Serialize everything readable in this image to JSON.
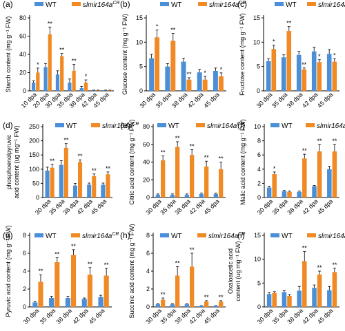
{
  "colors": {
    "wt": "#4a8fd8",
    "mutant": "#f08a24",
    "axis": "#000000"
  },
  "legend": {
    "wt_label": "WT",
    "mutant_label": "slmir164a",
    "mutant_sup": "CR"
  },
  "chart_data": [
    {
      "id": "a",
      "panel_label": "(a)",
      "type": "bar",
      "ylabel": "Starch content (mg g⁻¹ FW)",
      "categories": [
        "10 dpa",
        "20 dpa",
        "30 dpa",
        "35 dpa",
        "38 dpa",
        "42 dpa",
        "45 dpa"
      ],
      "ylim": [
        0,
        80
      ],
      "yticks": [
        0,
        20,
        40,
        60,
        80
      ],
      "series": [
        {
          "name": "WT",
          "values": [
            9,
            26,
            18,
            9,
            3,
            0.5,
            0.5
          ],
          "errors": [
            2,
            4,
            4,
            4,
            2,
            0.3,
            0.3
          ]
        },
        {
          "name": "slmir164aCR",
          "values": [
            20,
            62,
            38,
            22,
            9,
            0.5,
            0.5
          ],
          "errors": [
            5,
            8,
            3,
            7,
            3,
            0.3,
            0.3
          ]
        }
      ],
      "significance": [
        "*",
        "**",
        "**",
        "**",
        "*",
        "",
        ""
      ]
    },
    {
      "id": "b",
      "panel_label": "(b)",
      "type": "bar",
      "ylabel": "Glucose content (mg g⁻¹ FW)",
      "categories": [
        "30 dpa",
        "35 dpa",
        "38 dpa",
        "42 dpa",
        "45 dpa"
      ],
      "ylim": [
        0,
        15
      ],
      "yticks": [
        0,
        5,
        10,
        15
      ],
      "series": [
        {
          "name": "WT",
          "values": [
            6.7,
            5.0,
            6.0,
            3.8,
            4.1
          ],
          "errors": [
            0.8,
            0.6,
            0.7,
            0.6,
            0.6
          ]
        },
        {
          "name": "slmir164aCR",
          "values": [
            11.0,
            10.3,
            2.3,
            2.3,
            3.0
          ],
          "errors": [
            1.5,
            1.5,
            0.4,
            0.7,
            0.7
          ]
        }
      ],
      "significance": [
        "*",
        "**",
        "**",
        "*",
        "*"
      ]
    },
    {
      "id": "c",
      "panel_label": "(c)",
      "type": "bar",
      "ylabel": "Fructose content (mg g⁻¹ FW)",
      "categories": [
        "30 dpa",
        "35 dpa",
        "38 dpa",
        "42 dpa",
        "45 dpa"
      ],
      "ylim": [
        0,
        15
      ],
      "yticks": [
        0,
        5,
        10,
        15
      ],
      "series": [
        {
          "name": "WT",
          "values": [
            6.1,
            6.9,
            7.4,
            8.1,
            7.6
          ],
          "errors": [
            0.5,
            0.5,
            0.7,
            0.9,
            0.9
          ]
        },
        {
          "name": "slmir164aCR",
          "values": [
            8.6,
            12.3,
            4.4,
            5.9,
            6.0
          ],
          "errors": [
            0.8,
            0.9,
            0.3,
            0.5,
            0.6
          ]
        }
      ],
      "significance": [
        "*",
        "**",
        "**",
        "*",
        "*"
      ]
    },
    {
      "id": "d",
      "panel_label": "(d)",
      "type": "bar",
      "ylabel": "phosphoenolpyruvic acid content (ug mg⁻¹ FW)",
      "categories": [
        "30 dpa",
        "35 dpa",
        "38 dpa",
        "42 dpa",
        "45 dpa"
      ],
      "ylim": [
        0,
        250
      ],
      "yticks": [
        0,
        50,
        100,
        150,
        200,
        250
      ],
      "series": [
        {
          "name": "WT",
          "values": [
            95,
            115,
            42,
            45,
            45
          ],
          "errors": [
            12,
            15,
            8,
            6,
            6
          ]
        },
        {
          "name": "slmir164aCR",
          "values": [
            105,
            175,
            125,
            75,
            82
          ],
          "errors": [
            12,
            15,
            8,
            8,
            8
          ]
        }
      ],
      "significance": [
        "**",
        "**",
        "**",
        "**",
        "**"
      ]
    },
    {
      "id": "e",
      "panel_label": "(e)",
      "type": "bar",
      "ylabel": "Citric acid content (mg g⁻¹ FW)",
      "categories": [
        "30 dpa",
        "35 dpa",
        "38 dpa",
        "42 dpa",
        "45 dpa"
      ],
      "ylim": [
        0,
        80
      ],
      "yticks": [
        0,
        20,
        40,
        60,
        80
      ],
      "series": [
        {
          "name": "WT",
          "values": [
            3,
            3,
            3,
            4,
            4
          ],
          "errors": [
            1,
            1,
            1,
            1,
            1
          ]
        },
        {
          "name": "slmir164aCR",
          "values": [
            42,
            57,
            48,
            35,
            32
          ],
          "errors": [
            5,
            6,
            6,
            6,
            8
          ]
        }
      ],
      "significance": [
        "**",
        "**",
        "**",
        "**",
        "**"
      ]
    },
    {
      "id": "f",
      "panel_label": "(f)",
      "type": "bar",
      "ylabel": "Malic acid content (mg g⁻¹ FW)",
      "categories": [
        "30 dpa",
        "35 dpa",
        "38 dpa",
        "42 dpa",
        "45 dpa"
      ],
      "ylim": [
        0,
        10
      ],
      "yticks": [
        0,
        2,
        4,
        6,
        8,
        10
      ],
      "series": [
        {
          "name": "WT",
          "values": [
            1.4,
            0.9,
            0.8,
            1.6,
            4.0
          ],
          "errors": [
            0.2,
            0.1,
            0.1,
            0.1,
            0.4
          ]
        },
        {
          "name": "slmir164aCR",
          "values": [
            3.3,
            0.8,
            5.5,
            6.5,
            6.5
          ],
          "errors": [
            0.3,
            0.1,
            0.6,
            1.0,
            1.0
          ]
        }
      ],
      "significance": [
        "*",
        "",
        "**",
        "**",
        "**"
      ]
    },
    {
      "id": "g",
      "panel_label": "(g)",
      "type": "bar",
      "ylabel": "Pyruvic acid content (mg g⁻¹ FW)",
      "categories": [
        "30 dpa",
        "35 dpa",
        "38 dpa",
        "42 dpa",
        "45 dpa"
      ],
      "ylim": [
        0,
        8
      ],
      "yticks": [
        0,
        2,
        4,
        6,
        8
      ],
      "series": [
        {
          "name": "WT",
          "values": [
            0.5,
            1.0,
            1.0,
            0.9,
            1.1
          ],
          "errors": [
            0.1,
            0.2,
            0.2,
            0.1,
            0.2
          ]
        },
        {
          "name": "slmir164aCR",
          "values": [
            2.8,
            5.0,
            5.8,
            3.6,
            3.5
          ],
          "errors": [
            0.8,
            0.5,
            0.6,
            0.8,
            0.8
          ]
        }
      ],
      "significance": [
        "**",
        "**",
        "**",
        "**",
        "**"
      ]
    },
    {
      "id": "h",
      "panel_label": "(h)",
      "type": "bar",
      "ylabel": "Succinic acid content (mg g⁻¹ FW)",
      "categories": [
        "30 dpa",
        "35 dpa",
        "38 dpa",
        "42 dpa",
        "45 dpa"
      ],
      "ylim": [
        0,
        8
      ],
      "yticks": [
        0,
        2,
        4,
        6,
        8
      ],
      "series": [
        {
          "name": "WT",
          "values": [
            0.3,
            0.3,
            0.3,
            0.1,
            0.1
          ],
          "errors": [
            0.05,
            0.05,
            0.05,
            0.03,
            0.03
          ]
        },
        {
          "name": "slmir164aCR",
          "values": [
            0.8,
            3.5,
            4.5,
            0.6,
            0.6
          ],
          "errors": [
            0.2,
            1.0,
            1.5,
            0.1,
            0.1
          ]
        }
      ],
      "significance": [
        "**",
        "**",
        "**",
        "**",
        "**"
      ]
    },
    {
      "id": "i",
      "panel_label": "(i)",
      "type": "bar",
      "ylabel": "Oxaloacetic acid content (ug mg⁻¹ FW)",
      "categories": [
        "30 dpa",
        "35 dpa",
        "38 dpa",
        "42 dpa",
        "45 dpa"
      ],
      "ylim": [
        0,
        15
      ],
      "yticks": [
        0,
        5,
        10,
        15
      ],
      "series": [
        {
          "name": "WT",
          "values": [
            2.7,
            3.1,
            3.4,
            4.0,
            3.5
          ],
          "errors": [
            0.3,
            0.3,
            0.9,
            0.6,
            0.8
          ]
        },
        {
          "name": "slmir164aCR",
          "values": [
            2.9,
            2.3,
            9.6,
            6.8,
            7.3
          ],
          "errors": [
            0.3,
            0.3,
            2.0,
            0.7,
            0.8
          ]
        }
      ],
      "significance": [
        "",
        "",
        "**",
        "**",
        "**"
      ]
    }
  ]
}
